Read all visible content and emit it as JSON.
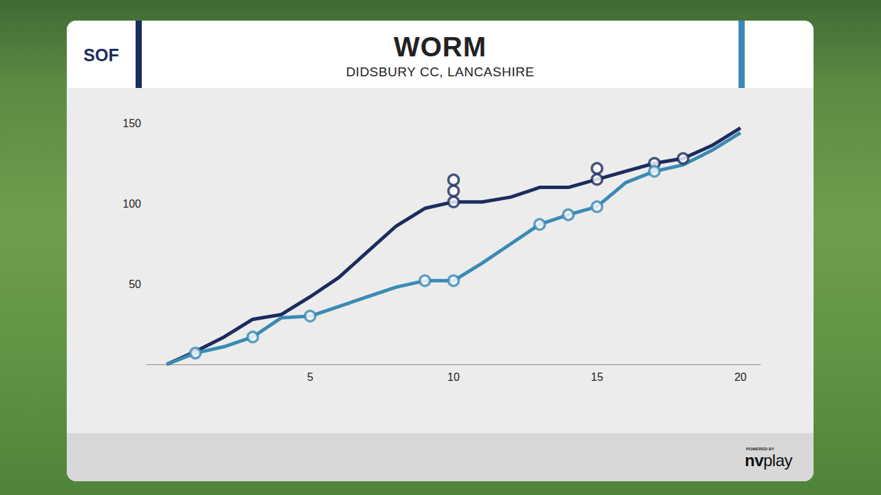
{
  "chart_data": {
    "type": "line",
    "title": "WORM",
    "subtitle": "DIDSBURY CC, LANCASHIRE",
    "team_label": "SOF",
    "footer": {
      "powered_by": "POWERED BY",
      "brand": "nvplay"
    },
    "x": [
      0,
      1,
      2,
      3,
      4,
      5,
      6,
      7,
      8,
      9,
      10,
      11,
      12,
      13,
      14,
      15,
      16,
      17,
      18,
      19,
      20
    ],
    "series": [
      {
        "color": "#1b2c5e",
        "values": [
          0,
          8,
          17,
          28,
          31,
          42,
          54,
          70,
          86,
          97,
          101,
          101,
          104,
          110,
          110,
          115,
          120,
          125,
          128,
          136,
          147
        ],
        "wickets": [
          0,
          0,
          0,
          0,
          0,
          0,
          0,
          0,
          0,
          0,
          3,
          0,
          0,
          0,
          0,
          2,
          0,
          1,
          1,
          0,
          0
        ]
      },
      {
        "color": "#3a8ab5",
        "values": [
          0,
          7,
          11,
          17,
          29,
          30,
          36,
          42,
          48,
          52,
          52,
          63,
          75,
          87,
          93,
          98,
          113,
          120,
          124,
          133,
          144
        ],
        "wickets": [
          0,
          1,
          0,
          1,
          0,
          1,
          0,
          0,
          0,
          1,
          1,
          0,
          0,
          1,
          1,
          1,
          0,
          1,
          0,
          0,
          0
        ]
      }
    ],
    "marker": "circle",
    "xlim": [
      -0.7,
      20.7
    ],
    "xticks": [
      5,
      10,
      15,
      20
    ],
    "ylim": [
      0,
      150
    ],
    "yticks": [
      50,
      100,
      150
    ],
    "grid": false
  }
}
